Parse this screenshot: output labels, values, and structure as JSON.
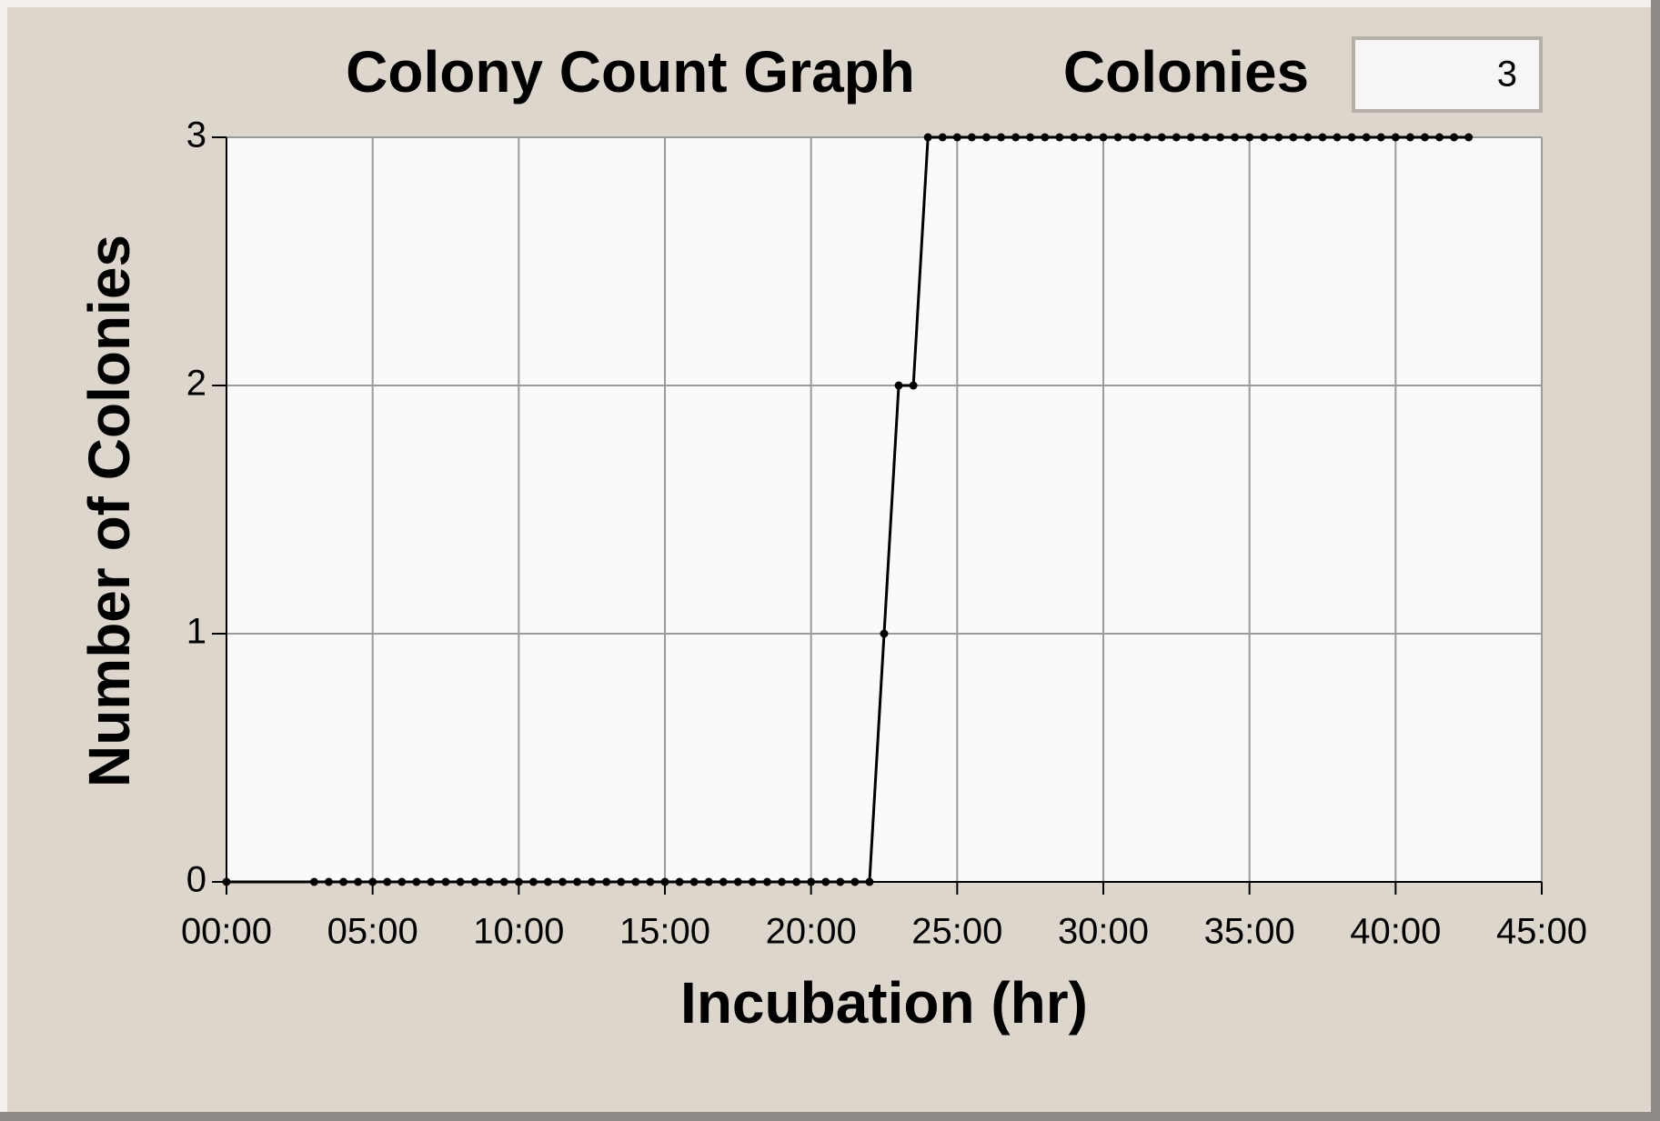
{
  "chart_data": {
    "type": "line",
    "title": "Colony Count Graph",
    "x_label": "Incubation (hr)",
    "y_label": "Number of Colonies",
    "x": [
      0,
      3,
      3.5,
      4,
      4.5,
      5,
      5.5,
      6,
      6.5,
      7,
      7.5,
      8,
      8.5,
      9,
      9.5,
      10,
      10.5,
      11,
      11.5,
      12,
      12.5,
      13,
      13.5,
      14,
      14.5,
      15,
      15.5,
      16,
      16.5,
      17,
      17.5,
      18,
      18.5,
      19,
      19.5,
      20,
      20.5,
      21,
      21.5,
      22,
      22.5,
      23,
      23.5,
      24,
      24.5,
      25,
      25.5,
      26,
      26.5,
      27,
      27.5,
      28,
      28.5,
      29,
      29.5,
      30,
      30.5,
      31,
      31.5,
      32,
      32.5,
      33,
      33.5,
      34,
      34.5,
      35,
      35.5,
      36,
      36.5,
      37,
      37.5,
      38,
      38.5,
      39,
      39.5,
      40,
      40.5,
      41,
      41.5,
      42,
      42.5
    ],
    "values": [
      0,
      0,
      0,
      0,
      0,
      0,
      0,
      0,
      0,
      0,
      0,
      0,
      0,
      0,
      0,
      0,
      0,
      0,
      0,
      0,
      0,
      0,
      0,
      0,
      0,
      0,
      0,
      0,
      0,
      0,
      0,
      0,
      0,
      0,
      0,
      0,
      0,
      0,
      0,
      0,
      1,
      2,
      2,
      3,
      3,
      3,
      3,
      3,
      3,
      3,
      3,
      3,
      3,
      3,
      3,
      3,
      3,
      3,
      3,
      3,
      3,
      3,
      3,
      3,
      3,
      3,
      3,
      3,
      3,
      3,
      3,
      3,
      3,
      3,
      3,
      3,
      3,
      3,
      3,
      3,
      3
    ],
    "color": "#000000",
    "xlim": [
      0,
      45
    ],
    "xticks": [
      {
        "value": 0,
        "label": "00:00"
      },
      {
        "value": 5,
        "label": "05:00"
      },
      {
        "value": 10,
        "label": "10:00"
      },
      {
        "value": 15,
        "label": "15:00"
      },
      {
        "value": 20,
        "label": "20:00"
      },
      {
        "value": 25,
        "label": "25:00"
      },
      {
        "value": 30,
        "label": "30:00"
      },
      {
        "value": 35,
        "label": "35:00"
      },
      {
        "value": 40,
        "label": "40:00"
      },
      {
        "value": 45,
        "label": "45:00"
      }
    ],
    "ylim": [
      0,
      3
    ],
    "yticks": [
      0,
      1,
      2,
      3
    ],
    "grid": true
  },
  "indicator": {
    "label": "Colonies",
    "value": 3
  }
}
